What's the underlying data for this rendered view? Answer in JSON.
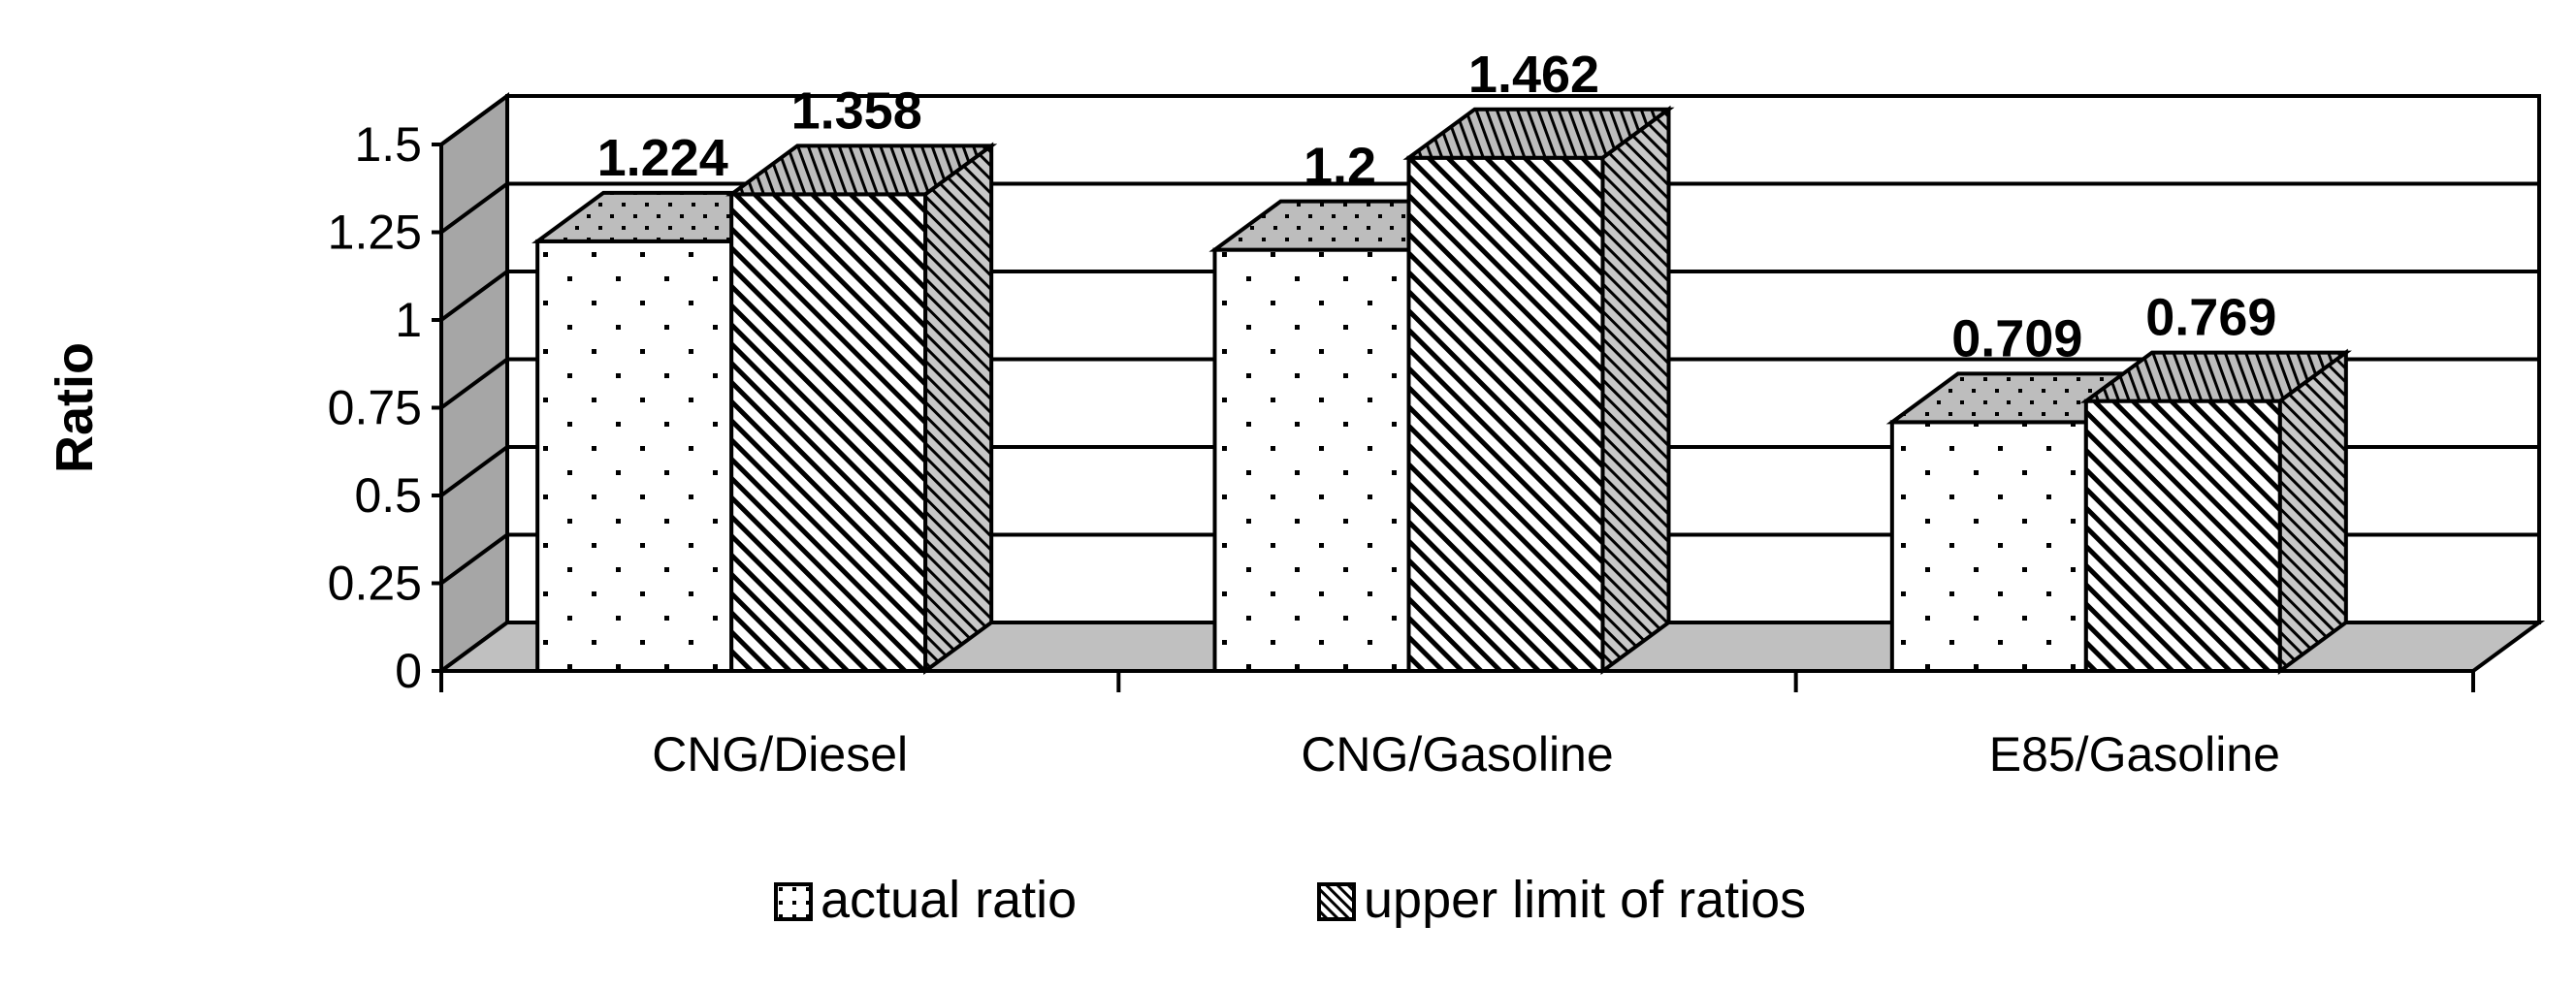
{
  "chart_data": {
    "type": "bar",
    "style": "3d-clustered-column",
    "title": "",
    "xlabel": "",
    "ylabel": "Ratio",
    "ylim": [
      0,
      1.5
    ],
    "yticks": [
      "0",
      "0.25",
      "0.5",
      "0.75",
      "1",
      "1.25",
      "1.5"
    ],
    "grid": true,
    "legend_position": "bottom",
    "categories": [
      "CNG/Diesel",
      "CNG/Gasoline",
      "E85/Gasoline"
    ],
    "series": [
      {
        "name": "actual ratio",
        "pattern": "dots",
        "values": [
          1.224,
          1.2,
          0.709
        ],
        "labels": [
          "1.224",
          "1.2",
          "0.709"
        ]
      },
      {
        "name": "upper limit of ratios",
        "pattern": "diagonal-stripes",
        "values": [
          1.358,
          1.462,
          0.769
        ],
        "labels": [
          "1.358",
          "1.462",
          "0.769"
        ]
      }
    ]
  }
}
